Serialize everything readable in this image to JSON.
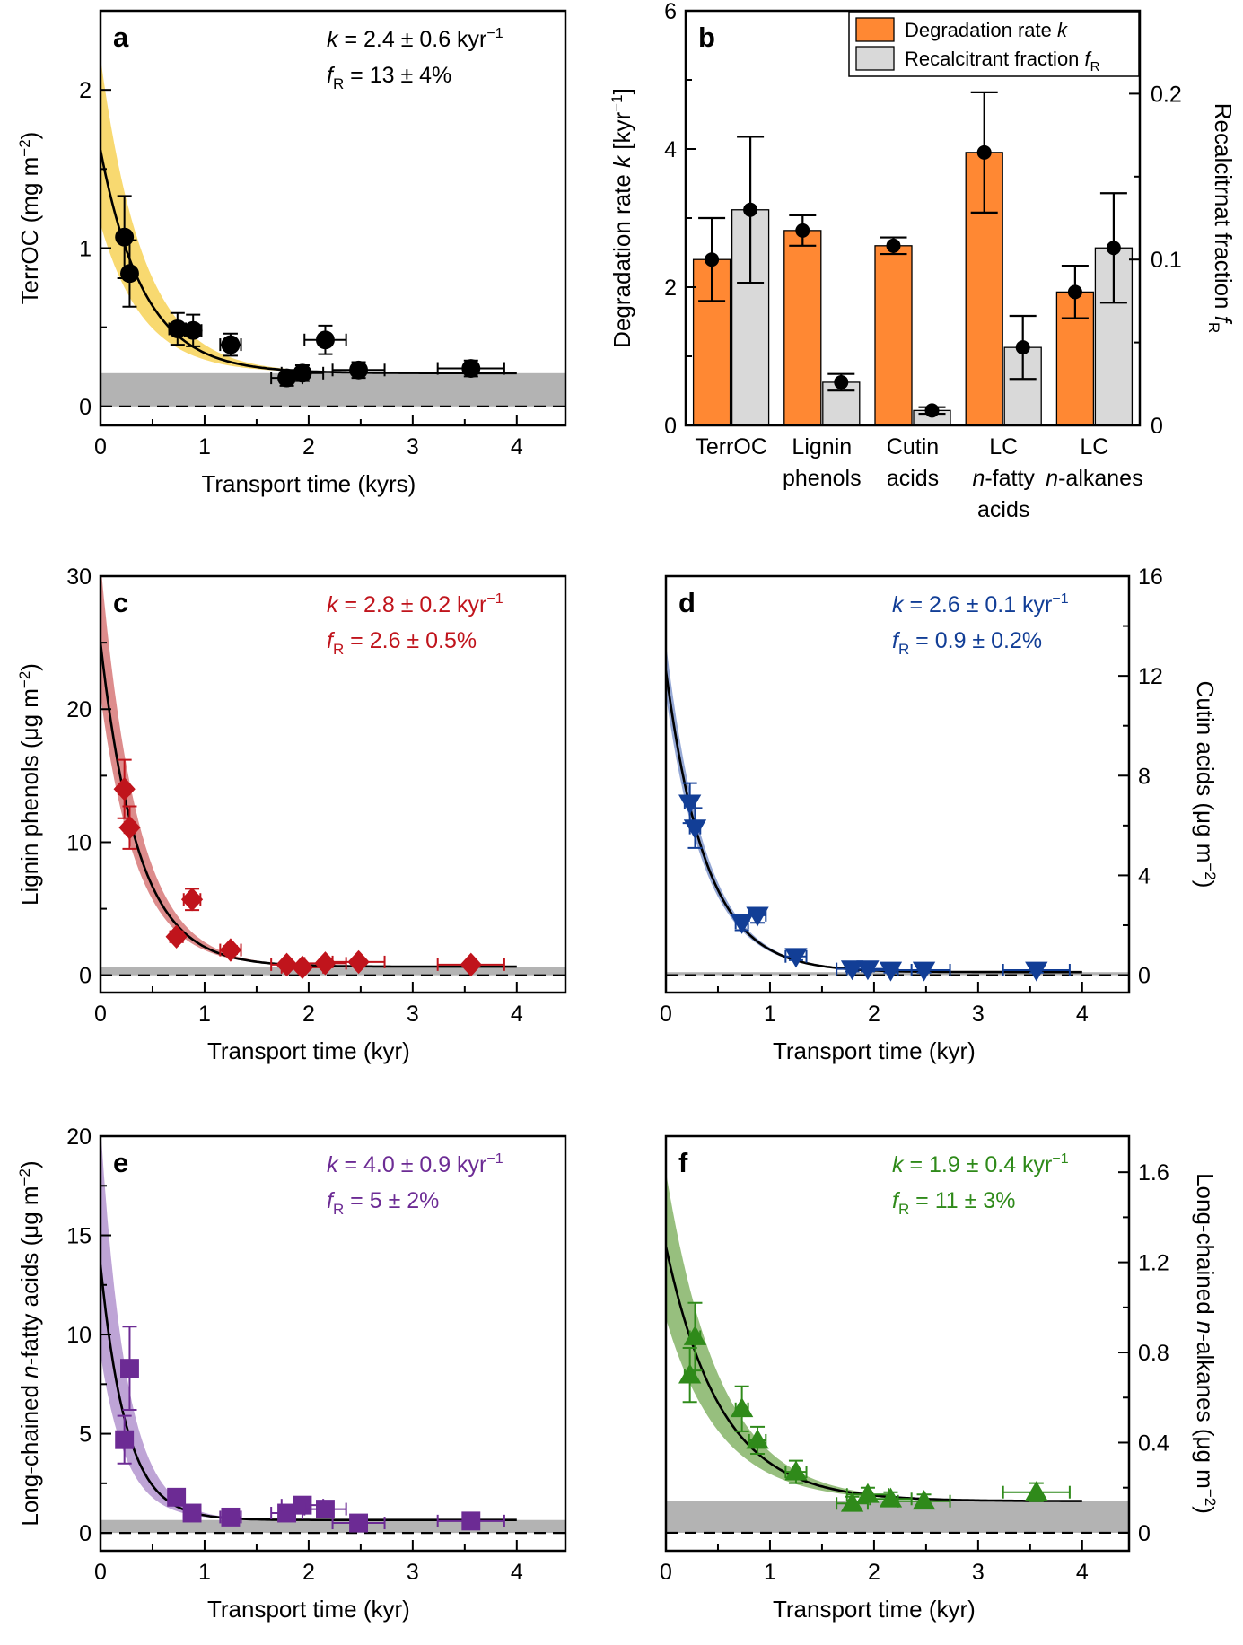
{
  "chart_data": [
    {
      "panel": "a",
      "type": "scatter",
      "xlabel": "Transport time (kyrs)",
      "ylabel": "TerrOC (mg m⁻²)",
      "ylabel_parts": [
        "TerrOC (mg m",
        "−2",
        ")"
      ],
      "xlim": [
        0,
        4.2
      ],
      "ylim": [
        -0.12,
        2.5
      ],
      "xticks": [
        0,
        1,
        2,
        3,
        4
      ],
      "yticks": [
        0,
        1,
        2
      ],
      "y_axis_side": "left",
      "color": "#000000",
      "band_color": "#f7d560",
      "marker": "circle",
      "fit": {
        "y0": 1.62,
        "k": 2.4,
        "floor": 0.21
      },
      "band": {
        "upper0": 2.2,
        "lower0": 1.15
      },
      "recalcitrant_band": [
        0,
        0.21
      ],
      "annotation": {
        "k_val": "= 2.4 ± 0.6 kyr",
        "f_val": "= 13 ± 4%"
      },
      "points": [
        {
          "x": 0.23,
          "y": 1.07,
          "xerr": 0.05,
          "yerr": 0.26
        },
        {
          "x": 0.28,
          "y": 0.84,
          "xerr": 0.05,
          "yerr": 0.21
        },
        {
          "x": 0.74,
          "y": 0.49,
          "xerr": 0.08,
          "yerr": 0.1
        },
        {
          "x": 0.89,
          "y": 0.48,
          "xerr": 0.08,
          "yerr": 0.1
        },
        {
          "x": 1.25,
          "y": 0.39,
          "xerr": 0.1,
          "yerr": 0.07
        },
        {
          "x": 1.79,
          "y": 0.18,
          "xerr": 0.15,
          "yerr": 0.05
        },
        {
          "x": 1.94,
          "y": 0.21,
          "xerr": 0.2,
          "yerr": 0.05
        },
        {
          "x": 2.16,
          "y": 0.42,
          "xerr": 0.2,
          "yerr": 0.09
        },
        {
          "x": 2.48,
          "y": 0.23,
          "xerr": 0.25,
          "yerr": 0.05
        },
        {
          "x": 3.56,
          "y": 0.24,
          "xerr": 0.32,
          "yerr": 0.05
        }
      ]
    },
    {
      "panel": "b",
      "type": "bar",
      "categories": [
        [
          "TerrOC"
        ],
        [
          "Lignin",
          "phenols"
        ],
        [
          "Cutin",
          "acids"
        ],
        [
          "LC",
          "n-fatty",
          "acids"
        ],
        [
          "LC",
          "n-alkanes"
        ]
      ],
      "ylabel": "Degradation rate k [kyr⁻¹]",
      "ylabel_parts": [
        "Degradation rate ",
        "k",
        " [kyr",
        "−1",
        "]"
      ],
      "ylabel_right": "Recalcitrnat fraction fR",
      "ylabel_right_parts": [
        "Recalcitrnat fraction ",
        "f",
        "R"
      ],
      "ylim": [
        0,
        6
      ],
      "yticks": [
        0,
        2,
        4,
        6
      ],
      "y2lim": [
        0,
        0.25
      ],
      "y2ticks": [
        0,
        0.1,
        0.2
      ],
      "series": [
        {
          "name": "Degradation rate k",
          "legend_parts": [
            "Degradation rate ",
            "k"
          ],
          "axis": "left",
          "color": "#ff8833",
          "values": [
            2.4,
            2.82,
            2.6,
            3.95,
            1.93
          ],
          "errors": [
            0.6,
            0.22,
            0.12,
            0.87,
            0.38
          ]
        },
        {
          "name": "Recalcitrant fraction fR",
          "legend_parts": [
            "Recalcitrant fraction ",
            "f",
            "R"
          ],
          "axis": "right",
          "color": "#d9d9d9",
          "values": [
            0.13,
            0.026,
            0.009,
            0.047,
            0.107
          ],
          "errors": [
            0.044,
            0.005,
            0.002,
            0.019,
            0.033
          ]
        }
      ]
    },
    {
      "panel": "c",
      "type": "scatter",
      "xlabel": "Transport time (kyr)",
      "ylabel": "Lignin phenols (μg m⁻²)",
      "ylabel_parts": [
        "Lignin phenols (μg m",
        "−2",
        ")"
      ],
      "xlim": [
        0,
        4.2
      ],
      "ylim": [
        -1.3,
        30
      ],
      "xticks": [
        0,
        1,
        2,
        3,
        4
      ],
      "yticks": [
        0,
        10,
        20,
        30
      ],
      "y_axis_side": "left",
      "color": "#c0141c",
      "band_color": "#d98080",
      "marker": "diamond",
      "fit": {
        "y0": 25,
        "k": 2.8,
        "floor": 0.65
      },
      "band": {
        "upper0": 31,
        "lower0": 21
      },
      "recalcitrant_band": [
        0,
        0.65
      ],
      "annotation": {
        "k_val": "= 2.8 ± 0.2 kyr",
        "f_val": "= 2.6 ± 0.5%"
      },
      "points": [
        {
          "x": 0.23,
          "y": 14.0,
          "xerr": 0.05,
          "yerr": 2.2
        },
        {
          "x": 0.28,
          "y": 11.1,
          "xerr": 0.05,
          "yerr": 1.6
        },
        {
          "x": 0.73,
          "y": 2.9,
          "xerr": 0.06,
          "yerr": 0.4
        },
        {
          "x": 0.88,
          "y": 5.7,
          "xerr": 0.08,
          "yerr": 0.8
        },
        {
          "x": 1.25,
          "y": 1.9,
          "xerr": 0.1,
          "yerr": 0.3
        },
        {
          "x": 1.79,
          "y": 0.8,
          "xerr": 0.15,
          "yerr": 0.2
        },
        {
          "x": 1.94,
          "y": 0.6,
          "xerr": 0.2,
          "yerr": 0.2
        },
        {
          "x": 2.16,
          "y": 0.9,
          "xerr": 0.2,
          "yerr": 0.2
        },
        {
          "x": 2.48,
          "y": 1.0,
          "xerr": 0.25,
          "yerr": 0.2
        },
        {
          "x": 3.56,
          "y": 0.8,
          "xerr": 0.32,
          "yerr": 0.2
        }
      ]
    },
    {
      "panel": "d",
      "type": "scatter",
      "xlabel": "Transport time (kyr)",
      "ylabel": "Cutin acids (μg m⁻²)",
      "ylabel_parts": [
        "Cutin acids (μg m",
        "−2",
        ")"
      ],
      "xlim": [
        0,
        4.2
      ],
      "ylim": [
        -0.7,
        16
      ],
      "xticks": [
        0,
        1,
        2,
        3,
        4
      ],
      "yticks": [
        0,
        4,
        8,
        12,
        16
      ],
      "y_axis_side": "right",
      "color": "#123e96",
      "band_color": "#8a9ed0",
      "marker": "triangle-down",
      "fit": {
        "y0": 12.2,
        "k": 2.6,
        "floor": 0.12
      },
      "band": {
        "upper0": 13.3,
        "lower0": 11.2
      },
      "recalcitrant_band": [
        0,
        0.12
      ],
      "annotation": {
        "k_val": "= 2.6 ± 0.1 kyr",
        "f_val": "= 0.9 ± 0.2%"
      },
      "points": [
        {
          "x": 0.23,
          "y": 6.9,
          "xerr": 0.05,
          "yerr": 0.8
        },
        {
          "x": 0.28,
          "y": 5.9,
          "xerr": 0.05,
          "yerr": 0.8
        },
        {
          "x": 0.73,
          "y": 2.1,
          "xerr": 0.06,
          "yerr": 0.3
        },
        {
          "x": 0.88,
          "y": 2.4,
          "xerr": 0.08,
          "yerr": 0.3
        },
        {
          "x": 1.25,
          "y": 0.75,
          "xerr": 0.1,
          "yerr": 0.15
        },
        {
          "x": 1.79,
          "y": 0.25,
          "xerr": 0.15,
          "yerr": 0.1
        },
        {
          "x": 1.94,
          "y": 0.25,
          "xerr": 0.2,
          "yerr": 0.1
        },
        {
          "x": 2.16,
          "y": 0.2,
          "xerr": 0.2,
          "yerr": 0.1
        },
        {
          "x": 2.48,
          "y": 0.2,
          "xerr": 0.25,
          "yerr": 0.1
        },
        {
          "x": 3.56,
          "y": 0.2,
          "xerr": 0.32,
          "yerr": 0.1
        }
      ]
    },
    {
      "panel": "e",
      "type": "scatter",
      "xlabel": "Transport time (kyr)",
      "ylabel": "Long-chained n-fatty acids (μg m⁻²)",
      "ylabel_parts": [
        "Long-chained ",
        "n",
        "-fatty acids (μg m",
        "−2",
        ")"
      ],
      "xlim": [
        0,
        4.2
      ],
      "ylim": [
        -0.9,
        20
      ],
      "xticks": [
        0,
        1,
        2,
        3,
        4
      ],
      "yticks": [
        0,
        5,
        10,
        15,
        20
      ],
      "y_axis_side": "left",
      "color": "#6c2b94",
      "band_color": "#b79ad2",
      "marker": "square",
      "fit": {
        "y0": 13.5,
        "k": 4.0,
        "floor": 0.65
      },
      "band": {
        "upper0": 20.5,
        "lower0": 9
      },
      "recalcitrant_band": [
        0,
        0.65
      ],
      "annotation": {
        "k_val": "= 4.0 ± 0.9 kyr",
        "f_val": "= 5 ± 2%"
      },
      "points": [
        {
          "x": 0.23,
          "y": 4.7,
          "xerr": 0.05,
          "yerr": 1.2
        },
        {
          "x": 0.28,
          "y": 8.3,
          "xerr": 0.05,
          "yerr": 2.1
        },
        {
          "x": 0.73,
          "y": 1.8,
          "xerr": 0.06,
          "yerr": 0.4
        },
        {
          "x": 0.88,
          "y": 1.0,
          "xerr": 0.08,
          "yerr": 0.3
        },
        {
          "x": 1.25,
          "y": 0.8,
          "xerr": 0.1,
          "yerr": 0.2
        },
        {
          "x": 1.79,
          "y": 1.0,
          "xerr": 0.15,
          "yerr": 0.3
        },
        {
          "x": 1.94,
          "y": 1.4,
          "xerr": 0.2,
          "yerr": 0.3
        },
        {
          "x": 2.16,
          "y": 1.2,
          "xerr": 0.2,
          "yerr": 0.3
        },
        {
          "x": 2.48,
          "y": 0.5,
          "xerr": 0.25,
          "yerr": 0.2
        },
        {
          "x": 3.56,
          "y": 0.6,
          "xerr": 0.32,
          "yerr": 0.2
        }
      ]
    },
    {
      "panel": "f",
      "type": "scatter",
      "xlabel": "Transport time (kyr)",
      "ylabel": "Long-chained n-alkanes (μg m⁻²)",
      "ylabel_parts": [
        "Long-chained ",
        "n",
        "-alkanes (μg m",
        "−2",
        ")"
      ],
      "xlim": [
        0,
        4.2
      ],
      "ylim": [
        -0.08,
        1.76
      ],
      "xticks": [
        0,
        1,
        2,
        3,
        4
      ],
      "yticks": [
        0,
        0.4,
        0.8,
        1.2,
        1.6
      ],
      "y_axis_side": "right",
      "color": "#2f8a1a",
      "band_color": "#8cb870",
      "marker": "triangle-up",
      "fit": {
        "y0": 1.27,
        "k": 1.9,
        "floor": 0.14
      },
      "band": {
        "upper0": 1.6,
        "lower0": 0.95
      },
      "recalcitrant_band": [
        0,
        0.14
      ],
      "annotation": {
        "k_val": "= 1.9 ± 0.4 kyr",
        "f_val": "= 11 ± 3%"
      },
      "points": [
        {
          "x": 0.23,
          "y": 0.7,
          "xerr": 0.05,
          "yerr": 0.12
        },
        {
          "x": 0.28,
          "y": 0.87,
          "xerr": 0.05,
          "yerr": 0.15
        },
        {
          "x": 0.73,
          "y": 0.55,
          "xerr": 0.06,
          "yerr": 0.1
        },
        {
          "x": 0.88,
          "y": 0.41,
          "xerr": 0.08,
          "yerr": 0.06
        },
        {
          "x": 1.25,
          "y": 0.27,
          "xerr": 0.1,
          "yerr": 0.05
        },
        {
          "x": 1.79,
          "y": 0.13,
          "xerr": 0.15,
          "yerr": 0.03
        },
        {
          "x": 1.94,
          "y": 0.17,
          "xerr": 0.2,
          "yerr": 0.03
        },
        {
          "x": 2.16,
          "y": 0.15,
          "xerr": 0.2,
          "yerr": 0.03
        },
        {
          "x": 2.48,
          "y": 0.14,
          "xerr": 0.25,
          "yerr": 0.03
        },
        {
          "x": 3.56,
          "y": 0.18,
          "xerr": 0.32,
          "yerr": 0.04
        }
      ]
    }
  ]
}
